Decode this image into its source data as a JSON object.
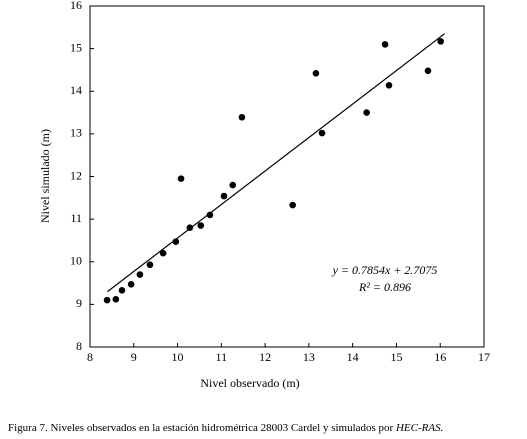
{
  "chart_data": {
    "type": "scatter",
    "xlabel": "Nivel observado (m)",
    "ylabel": "Nivel simulado (m)",
    "x": [
      8.39,
      8.59,
      8.73,
      8.94,
      9.14,
      9.37,
      9.67,
      9.96,
      10.08,
      10.28,
      10.53,
      10.74,
      11.06,
      11.26,
      11.47,
      12.63,
      13.16,
      13.3,
      14.32,
      14.74,
      14.83,
      15.72,
      16.01
    ],
    "values": [
      9.1,
      9.12,
      9.33,
      9.47,
      9.7,
      9.93,
      10.2,
      10.47,
      11.95,
      10.8,
      10.85,
      11.1,
      11.54,
      11.8,
      13.39,
      11.33,
      14.42,
      13.02,
      13.5,
      15.1,
      14.14,
      14.48,
      15.17
    ],
    "color": "#000000",
    "trendline": {
      "x": [
        8.4,
        16.1
      ],
      "values": [
        9.3,
        15.35
      ]
    },
    "annotations": [
      "y = 0.7854x + 2.7075",
      "R² = 0.896"
    ],
    "xlim": [
      8,
      17
    ],
    "xticks": [
      8,
      9,
      10,
      11,
      12,
      13,
      14,
      15,
      16,
      17
    ],
    "ylim": [
      8,
      16
    ],
    "yticks": [
      8,
      9,
      10,
      11,
      12,
      13,
      14,
      15,
      16
    ]
  },
  "caption": {
    "text": "Figura 7. Niveles observados en la estación hidrométrica 28003 Cardel y simulados por",
    "emphasis": "HEC-RAS."
  }
}
